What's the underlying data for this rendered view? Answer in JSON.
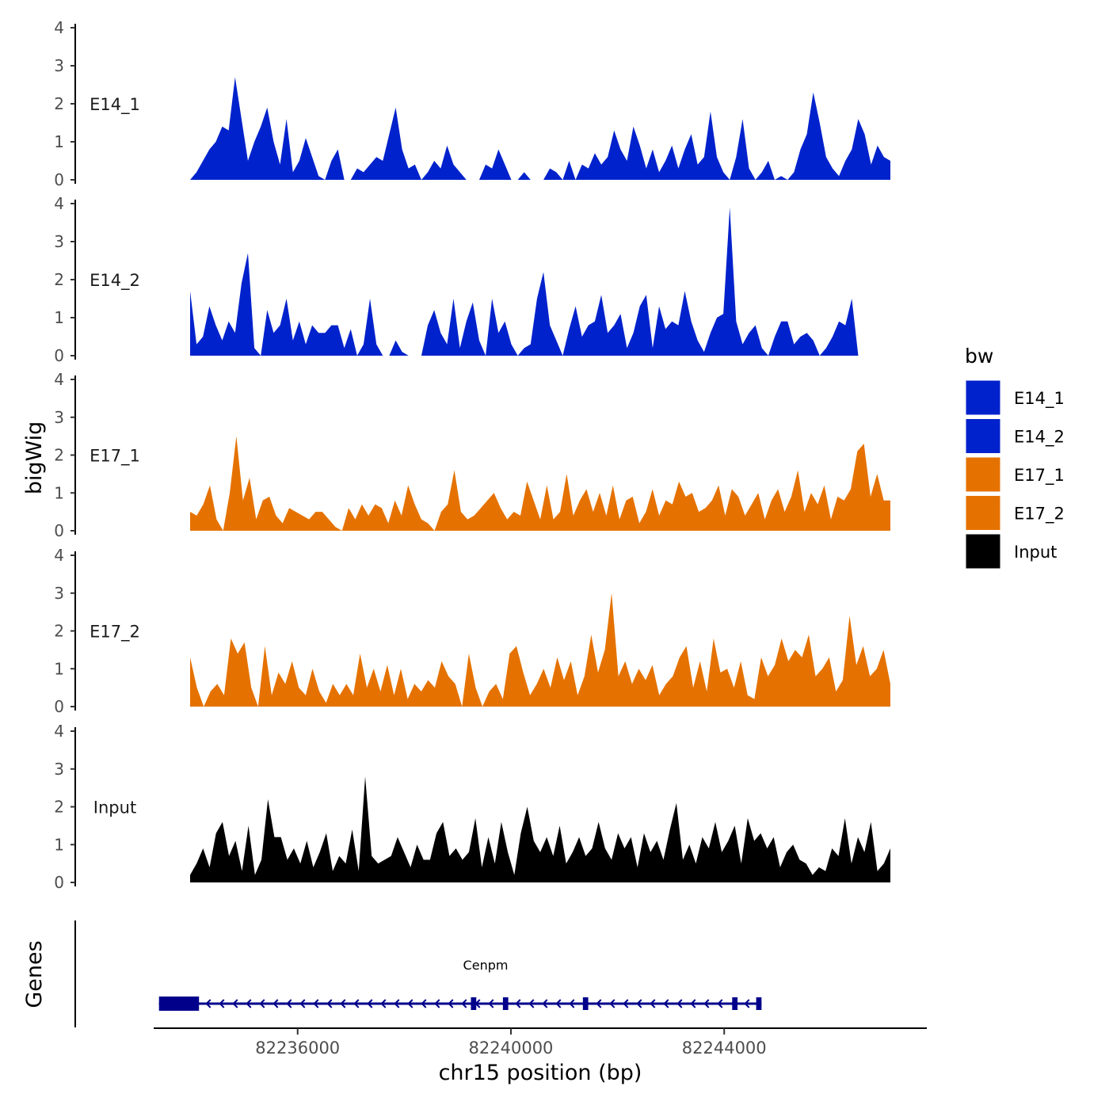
{
  "chart_data": {
    "type": "area",
    "ylabel": "bigWig",
    "xlabel": "chr15 position (bp)",
    "genes_label": "Genes",
    "xlim": [
      82233300,
      82247800
    ],
    "ylim": [
      0,
      4
    ],
    "y_ticks": [
      "0",
      "1",
      "2",
      "3",
      "4"
    ],
    "x_ticks": [
      {
        "value": 82236000,
        "label": "82236000"
      },
      {
        "value": 82240000,
        "label": "82240000"
      },
      {
        "value": 82244000,
        "label": "82244000"
      }
    ],
    "x_range": [
      82234000,
      82247000
    ],
    "legend": {
      "title": "bw",
      "items": [
        {
          "label": "E14_1",
          "color": "#0022CC"
        },
        {
          "label": "E14_2",
          "color": "#0022CC"
        },
        {
          "label": "E17_1",
          "color": "#E57200"
        },
        {
          "label": "E17_2",
          "color": "#E57200"
        },
        {
          "label": "Input",
          "color": "#000000"
        }
      ]
    },
    "series": [
      {
        "name": "E14_1",
        "color": "#0022CC",
        "values": [
          0.0,
          0.2,
          0.5,
          0.8,
          1.0,
          1.4,
          1.3,
          2.7,
          1.6,
          0.5,
          1.0,
          1.4,
          1.9,
          1.0,
          0.4,
          1.6,
          0.2,
          0.5,
          1.1,
          0.6,
          0.1,
          0.0,
          0.5,
          0.8,
          0.0,
          0.0,
          0.3,
          0.2,
          0.4,
          0.6,
          0.5,
          1.2,
          1.9,
          0.8,
          0.3,
          0.4,
          0.0,
          0.2,
          0.5,
          0.3,
          0.9,
          0.4,
          0.2,
          0.0,
          0.0,
          0.0,
          0.4,
          0.3,
          0.8,
          0.4,
          0.0,
          0.0,
          0.2,
          0.0,
          0.0,
          0.0,
          0.3,
          0.2,
          0.0,
          0.5,
          0.0,
          0.4,
          0.3,
          0.7,
          0.4,
          0.6,
          1.3,
          0.8,
          0.5,
          1.4,
          0.9,
          0.3,
          0.8,
          0.2,
          0.5,
          0.9,
          0.3,
          0.8,
          1.2,
          0.4,
          0.6,
          1.8,
          0.6,
          0.2,
          0.0,
          0.6,
          1.6,
          0.3,
          0.0,
          0.2,
          0.5,
          0.0,
          0.1,
          0.0,
          0.2,
          0.8,
          1.2,
          2.3,
          1.5,
          0.6,
          0.3,
          0.1,
          0.5,
          0.8,
          1.6,
          1.2,
          0.4,
          0.9,
          0.6,
          0.5
        ]
      },
      {
        "name": "E14_2",
        "color": "#0022CC",
        "values": [
          1.7,
          0.3,
          0.5,
          1.3,
          0.8,
          0.4,
          0.9,
          0.6,
          1.9,
          2.7,
          0.2,
          0.0,
          1.2,
          0.6,
          0.8,
          1.5,
          0.4,
          0.9,
          0.3,
          0.8,
          0.6,
          0.6,
          0.8,
          0.8,
          0.2,
          0.7,
          0.0,
          0.3,
          1.5,
          0.3,
          0.0,
          0.0,
          0.4,
          0.1,
          0.0,
          0.0,
          0.0,
          0.8,
          1.2,
          0.6,
          0.3,
          1.5,
          0.2,
          0.9,
          1.4,
          0.4,
          0.0,
          1.5,
          0.6,
          0.9,
          0.3,
          0.0,
          0.2,
          0.3,
          1.5,
          2.2,
          0.8,
          0.4,
          0.0,
          0.7,
          1.3,
          0.5,
          0.8,
          0.9,
          1.6,
          0.6,
          0.8,
          1.1,
          0.2,
          0.6,
          1.3,
          1.6,
          0.2,
          1.3,
          0.7,
          0.9,
          0.8,
          1.7,
          0.9,
          0.4,
          0.1,
          0.6,
          1.0,
          1.1,
          3.9,
          0.9,
          0.3,
          0.6,
          0.8,
          0.2,
          0.0,
          0.5,
          0.9,
          0.9,
          0.3,
          0.5,
          0.6,
          0.4,
          0.0,
          0.2,
          0.5,
          0.9,
          0.8,
          1.5,
          0.0,
          0.0,
          0.0,
          0.0,
          0.0,
          0.0
        ]
      },
      {
        "name": "E17_1",
        "color": "#E57200",
        "values": [
          0.5,
          0.4,
          0.7,
          1.2,
          0.3,
          0.0,
          1.0,
          2.5,
          0.8,
          1.4,
          0.3,
          0.8,
          0.9,
          0.4,
          0.2,
          0.6,
          0.5,
          0.4,
          0.3,
          0.5,
          0.5,
          0.3,
          0.1,
          0.0,
          0.6,
          0.3,
          0.7,
          0.4,
          0.7,
          0.6,
          0.2,
          0.8,
          0.4,
          1.2,
          0.7,
          0.3,
          0.2,
          0.0,
          0.5,
          0.7,
          1.6,
          0.5,
          0.3,
          0.4,
          0.6,
          0.8,
          1.0,
          0.6,
          0.3,
          0.5,
          0.4,
          1.3,
          0.8,
          0.3,
          1.2,
          0.3,
          0.5,
          1.5,
          0.4,
          0.8,
          1.1,
          0.5,
          1.0,
          0.4,
          1.2,
          0.3,
          0.8,
          0.9,
          0.2,
          0.5,
          1.1,
          0.4,
          0.8,
          0.7,
          1.3,
          0.9,
          1.0,
          0.5,
          0.6,
          0.8,
          1.2,
          0.4,
          1.1,
          0.9,
          0.4,
          0.7,
          1.0,
          0.3,
          0.8,
          1.1,
          0.5,
          0.9,
          1.6,
          0.5,
          1.0,
          0.7,
          1.2,
          0.3,
          0.9,
          0.8,
          1.1,
          2.1,
          2.3,
          0.9,
          1.5,
          0.8,
          0.8
        ]
      },
      {
        "name": "E17_2",
        "color": "#E57200",
        "values": [
          1.3,
          0.5,
          0.0,
          0.4,
          0.6,
          0.3,
          1.8,
          1.4,
          1.7,
          0.5,
          0.0,
          1.6,
          0.3,
          0.9,
          0.6,
          1.2,
          0.5,
          0.3,
          1.0,
          0.4,
          0.1,
          0.6,
          0.3,
          0.6,
          0.3,
          1.4,
          0.5,
          1.0,
          0.4,
          1.1,
          0.3,
          1.0,
          0.2,
          0.6,
          0.4,
          0.7,
          0.5,
          1.2,
          0.8,
          0.6,
          0.0,
          1.4,
          0.5,
          0.0,
          0.4,
          0.6,
          0.2,
          1.4,
          1.6,
          0.9,
          0.3,
          0.6,
          1.0,
          0.5,
          1.3,
          0.7,
          1.2,
          0.3,
          0.8,
          1.9,
          0.9,
          1.5,
          3.0,
          0.8,
          1.2,
          0.6,
          1.0,
          0.7,
          1.1,
          0.3,
          0.6,
          0.8,
          1.3,
          1.6,
          0.5,
          1.2,
          0.4,
          1.8,
          0.9,
          1.0,
          0.5,
          1.2,
          0.3,
          0.2,
          1.3,
          0.8,
          1.1,
          1.8,
          1.2,
          1.5,
          1.3,
          1.9,
          0.8,
          1.0,
          1.3,
          0.4,
          0.7,
          2.4,
          1.1,
          1.6,
          0.8,
          1.0,
          1.5,
          0.6
        ]
      },
      {
        "name": "Input",
        "color": "#000000",
        "values": [
          0.2,
          0.5,
          0.9,
          0.4,
          1.3,
          1.6,
          0.7,
          1.1,
          0.3,
          1.5,
          0.2,
          0.6,
          2.2,
          1.2,
          1.2,
          0.6,
          0.9,
          0.5,
          1.1,
          0.4,
          0.8,
          1.3,
          0.3,
          0.7,
          0.5,
          1.4,
          0.3,
          2.8,
          0.7,
          0.5,
          0.6,
          0.7,
          1.2,
          0.8,
          0.4,
          1.0,
          0.6,
          0.6,
          1.3,
          1.6,
          0.7,
          0.9,
          0.6,
          0.8,
          1.7,
          0.4,
          1.2,
          0.5,
          1.6,
          0.8,
          0.2,
          1.3,
          2.0,
          1.1,
          0.8,
          1.2,
          0.7,
          1.5,
          0.5,
          0.8,
          1.2,
          0.7,
          0.9,
          1.6,
          0.9,
          0.6,
          1.3,
          0.9,
          1.2,
          0.4,
          1.3,
          0.8,
          1.1,
          0.6,
          1.4,
          2.1,
          0.6,
          1.0,
          0.5,
          1.2,
          0.9,
          1.6,
          0.8,
          1.1,
          1.5,
          0.5,
          1.7,
          1.1,
          1.3,
          0.9,
          1.2,
          0.4,
          0.8,
          1.0,
          0.6,
          0.5,
          0.2,
          0.4,
          0.3,
          0.9,
          0.7,
          1.7,
          0.5,
          1.2,
          0.8,
          1.6,
          0.3,
          0.5,
          0.9
        ]
      }
    ],
    "gene": {
      "name": "Cenpm",
      "strand": "-",
      "start": 82233400,
      "end": 82244700,
      "exons": [
        [
          82233400,
          82234150
        ],
        [
          82239250,
          82239350
        ],
        [
          82239850,
          82239950
        ],
        [
          82241350,
          82241450
        ],
        [
          82244150,
          82244250
        ],
        [
          82244600,
          82244700
        ]
      ],
      "color": "#00008B"
    }
  }
}
